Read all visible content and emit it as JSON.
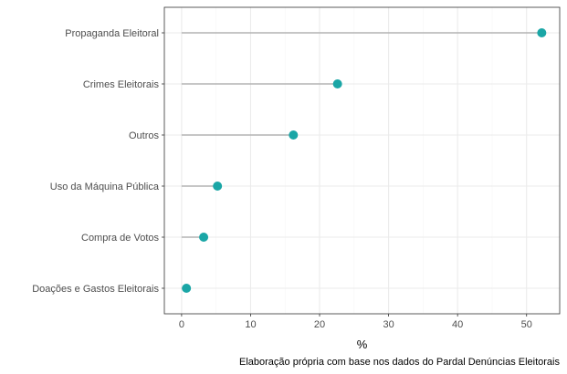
{
  "chart_data": {
    "type": "lollipop",
    "categories": [
      "Propaganda Eleitoral",
      "Crimes Eleitorais",
      "Outros",
      "Uso da Máquina Pública",
      "Compra de Votos",
      "Doações e Gastos Eleitorais"
    ],
    "values": [
      52.2,
      22.6,
      16.2,
      5.2,
      3.2,
      0.7
    ],
    "xlabel": "%",
    "ylabel": "",
    "title": "",
    "caption": "Elaboração própria com base nos dados do Pardal Denúncias Eleitorais",
    "xlim": [
      -2.5,
      54.8
    ],
    "xticks": [
      0,
      10,
      20,
      30,
      40,
      50
    ],
    "grid": true,
    "colors": {
      "point": "#1aa6a6",
      "stem": "#b3b3b3",
      "grid_major": "#ebebeb",
      "grid_minor": "#f5f5f5",
      "panel_border": "#333333"
    }
  }
}
